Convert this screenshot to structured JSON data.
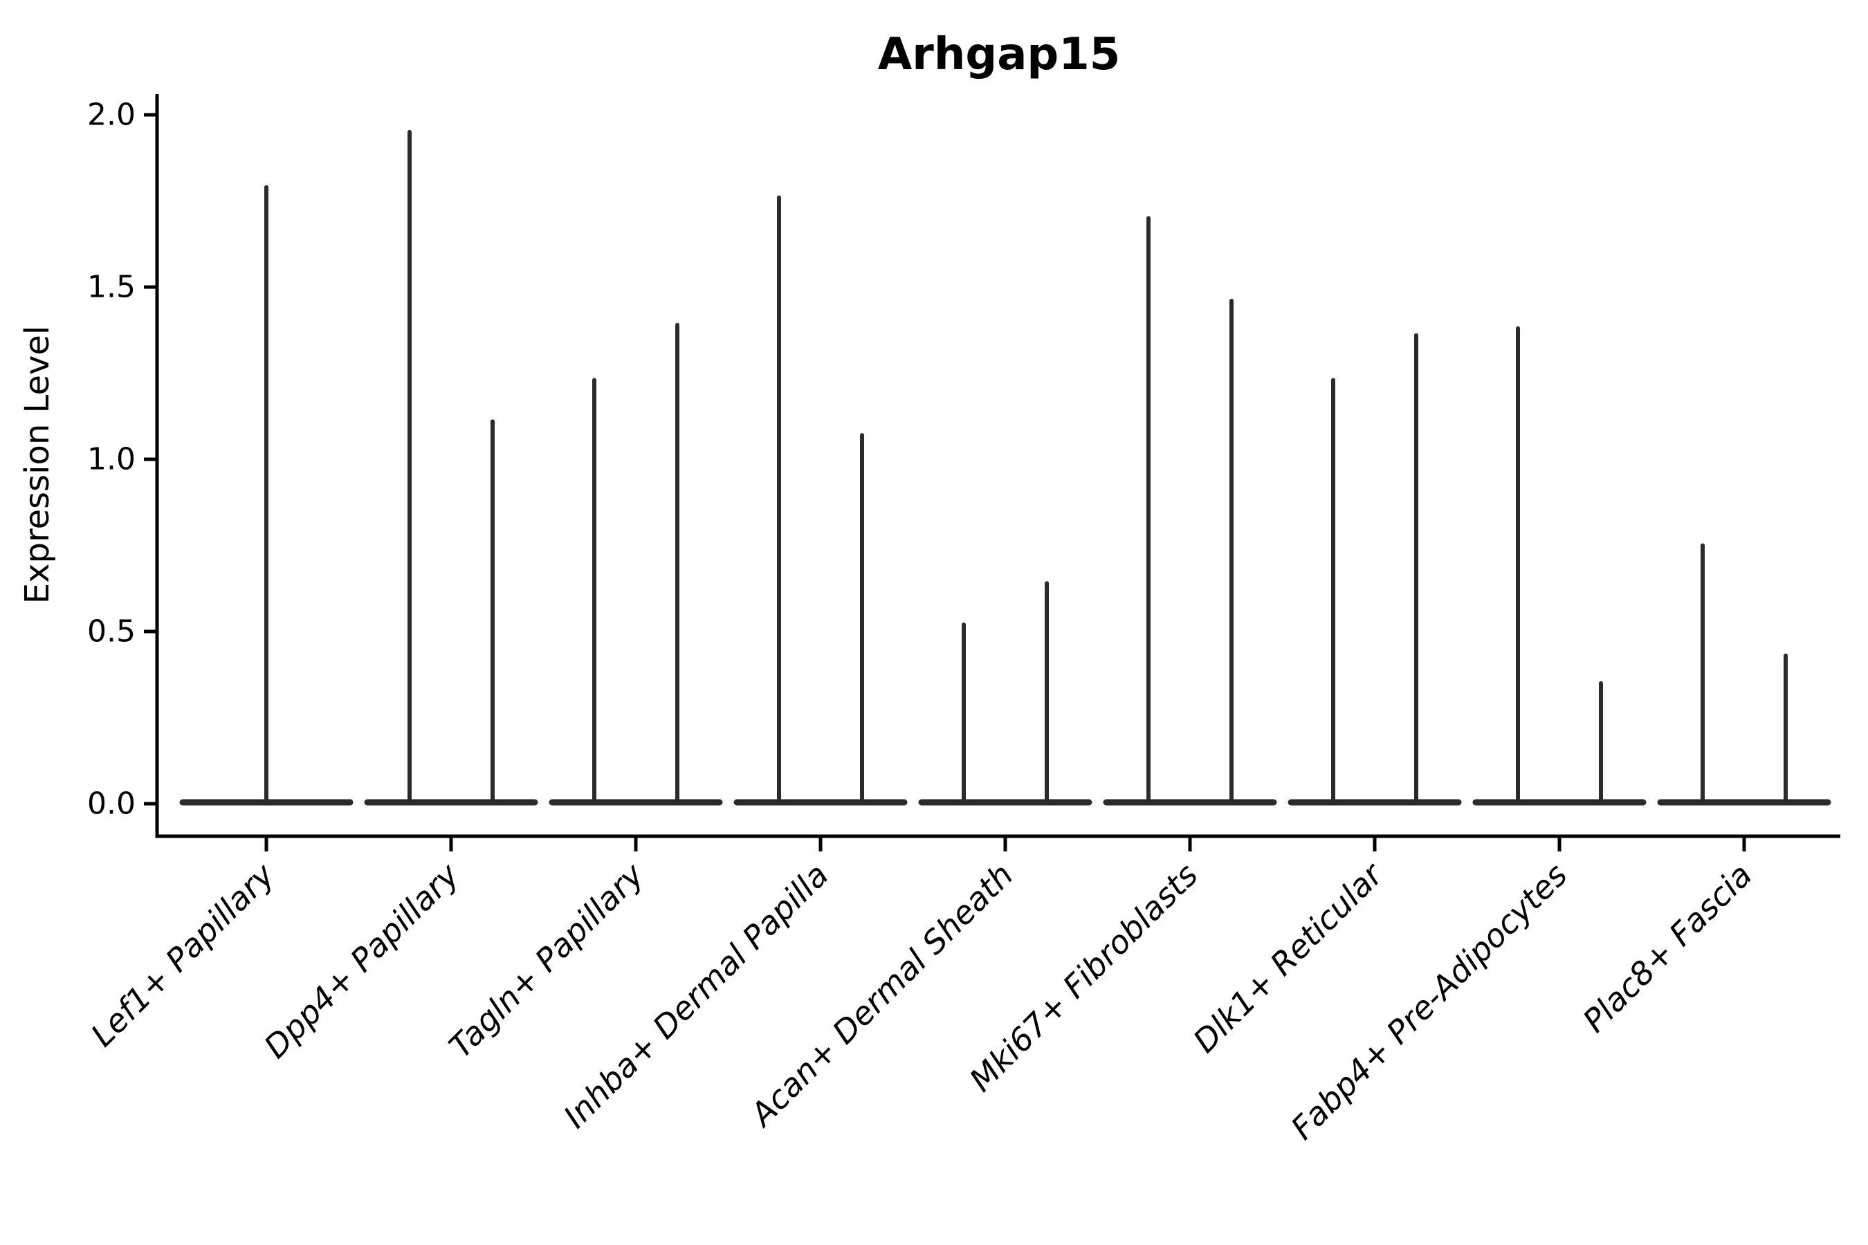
{
  "figure": {
    "background": "#ffffff"
  },
  "chart_data": {
    "type": "violin",
    "title": "Arhgap15",
    "xlabel": "",
    "ylabel": "Expression Level",
    "ylim": [
      -0.09,
      2.06
    ],
    "grid": false,
    "legend": "none",
    "colors": {
      "violin": "#2b2b2b",
      "axis": "#000000",
      "text": "#000000"
    },
    "yticks": [
      {
        "label": "0.0",
        "value": 0.0
      },
      {
        "label": "0.5",
        "value": 0.5
      },
      {
        "label": "1.0",
        "value": 1.0
      },
      {
        "label": "1.5",
        "value": 1.5
      },
      {
        "label": "2.0",
        "value": 2.0
      }
    ],
    "categories": [
      "Lef1+ Papillary",
      "Dpp4+ Papillary",
      "Tagln+ Papillary",
      "Inhba+ Dermal Papilla",
      "Acan+ Dermal Sheath",
      "Mki67+ Fibroblasts",
      "Dlk1+ Reticular",
      "Fabp4+ Pre-Adipocytes",
      "Plac8+ Fascia"
    ],
    "violins": [
      {
        "category": "Lef1+ Papillary",
        "baseline_value": 0,
        "spike_maxima": [
          1.79
        ]
      },
      {
        "category": "Dpp4+ Papillary",
        "baseline_value": 0,
        "spike_maxima": [
          1.95,
          1.11
        ]
      },
      {
        "category": "Tagln+ Papillary",
        "baseline_value": 0,
        "spike_maxima": [
          1.23,
          1.39
        ]
      },
      {
        "category": "Inhba+ Dermal Papilla",
        "baseline_value": 0,
        "spike_maxima": [
          1.76,
          1.07
        ]
      },
      {
        "category": "Acan+ Dermal Sheath",
        "baseline_value": 0,
        "spike_maxima": [
          0.52,
          0.64
        ]
      },
      {
        "category": "Mki67+ Fibroblasts",
        "baseline_value": 0,
        "spike_maxima": [
          1.7,
          1.46
        ]
      },
      {
        "category": "Dlk1+ Reticular",
        "baseline_value": 0,
        "spike_maxima": [
          1.23,
          1.36
        ]
      },
      {
        "category": "Fabp4+ Pre-Adipocytes",
        "baseline_value": 0,
        "spike_maxima": [
          1.38,
          0.35
        ]
      },
      {
        "category": "Plac8+ Fascia",
        "baseline_value": 0,
        "spike_maxima": [
          0.75,
          0.43
        ]
      }
    ]
  }
}
